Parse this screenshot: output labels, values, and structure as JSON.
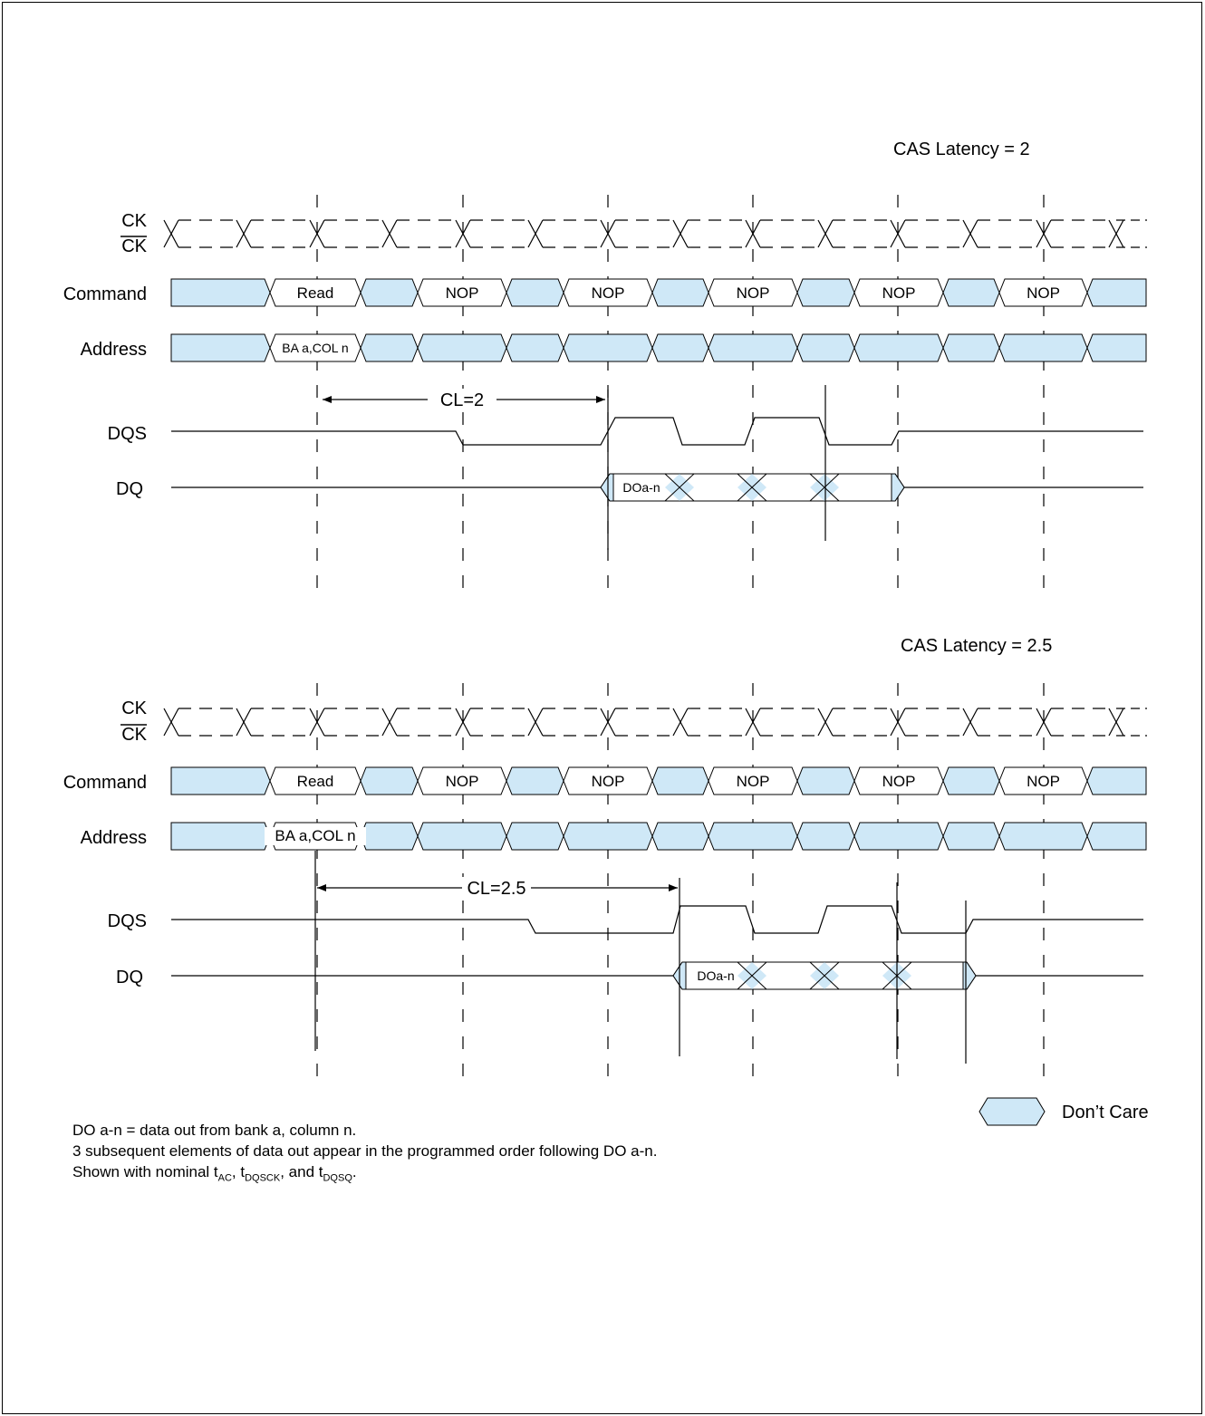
{
  "colors": {
    "dont_care_fill": "#cfe8f7",
    "line": "#000000"
  },
  "panels": [
    {
      "title": "CAS Latency = 2",
      "signal_labels": {
        "ck": "CK",
        "ck_bar": "CK",
        "command": "Command",
        "address": "Address",
        "dqs": "DQS",
        "dq": "DQ"
      },
      "commands": [
        "Read",
        "NOP",
        "NOP",
        "NOP",
        "NOP",
        "NOP"
      ],
      "address_value": "BA a,COL n",
      "cl_label": "CL=2",
      "dq_label": "DOa-n"
    },
    {
      "title": "CAS Latency = 2.5",
      "signal_labels": {
        "ck": "CK",
        "ck_bar": "CK",
        "command": "Command",
        "address": "Address",
        "dqs": "DQS",
        "dq": "DQ"
      },
      "commands": [
        "Read",
        "NOP",
        "NOP",
        "NOP",
        "NOP",
        "NOP"
      ],
      "address_value": "BA a,COL n",
      "cl_label": "CL=2.5",
      "dq_label": "DOa-n"
    }
  ],
  "legend": {
    "label": "Don’t Care"
  },
  "notes": {
    "line1": "DO a-n = data out from bank a, column n.",
    "line2": "3 subsequent elements of data out appear in the programmed order following DO a-n.",
    "line3_prefix": "Shown with nominal t",
    "line3_sub1": "AC",
    "line3_mid1": ", t",
    "line3_sub2": "DQSCK",
    "line3_mid2": ", and t",
    "line3_sub3": "DQSQ",
    "line3_suffix": "."
  }
}
